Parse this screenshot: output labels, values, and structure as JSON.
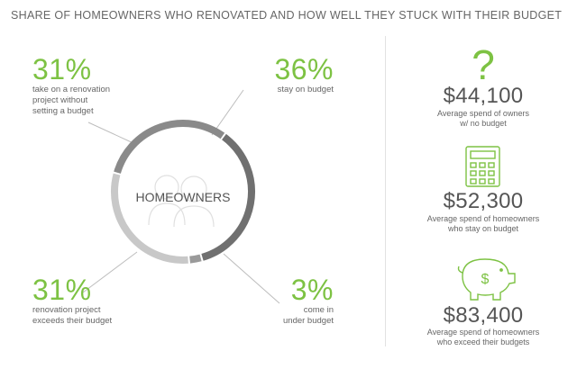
{
  "title": "SHARE OF HOMEOWNERS WHO RENOVATED AND HOW WELL THEY STUCK WITH THEIR BUDGET",
  "colors": {
    "accent": "#7dc243",
    "dark_gray": "#707070",
    "mid_gray": "#9a9a9a",
    "light_gray": "#c8c8c8"
  },
  "chart_data": {
    "type": "pie",
    "title": "SHARE OF HOMEOWNERS WHO RENOVATED AND HOW WELL THEY STUCK WITH THEIR BUDGET",
    "center_label": "HOMEOWNERS",
    "slices": [
      {
        "value": 36,
        "label": "36%",
        "caption": "stay on budget",
        "color": "#707070"
      },
      {
        "value": 3,
        "label": "3%",
        "caption": "come in under budget",
        "color": "#9a9a9a"
      },
      {
        "value": 31,
        "label": "31%",
        "caption": "renovation project exceeds their budget",
        "color": "#c8c8c8"
      },
      {
        "value": 31,
        "label": "31%",
        "caption": "take on a renovation project without setting a budget",
        "color": "#8a8a8a"
      }
    ]
  },
  "stats": {
    "top_left": {
      "pct": "31%",
      "line1": "take on a renovation",
      "line2": "project without",
      "line3": "setting a budget"
    },
    "top_right": {
      "pct": "36%",
      "line1": "stay on budget"
    },
    "bottom_left": {
      "pct": "31%",
      "line1": "renovation project",
      "line2": "exceeds their budget"
    },
    "bottom_right": {
      "pct": "3%",
      "line1": "come in",
      "line2": "under budget"
    }
  },
  "spend": [
    {
      "icon": "question-mark-icon",
      "value": "$44,100",
      "line1": "Average spend of owners",
      "line2": "w/ no budget"
    },
    {
      "icon": "calculator-icon",
      "value": "$52,300",
      "line1": "Average spend of homeowners",
      "line2": "who stay on budget"
    },
    {
      "icon": "piggy-bank-icon",
      "value": "$83,400",
      "line1": "Average spend of homeowners",
      "line2": "who exceed their budgets"
    }
  ]
}
